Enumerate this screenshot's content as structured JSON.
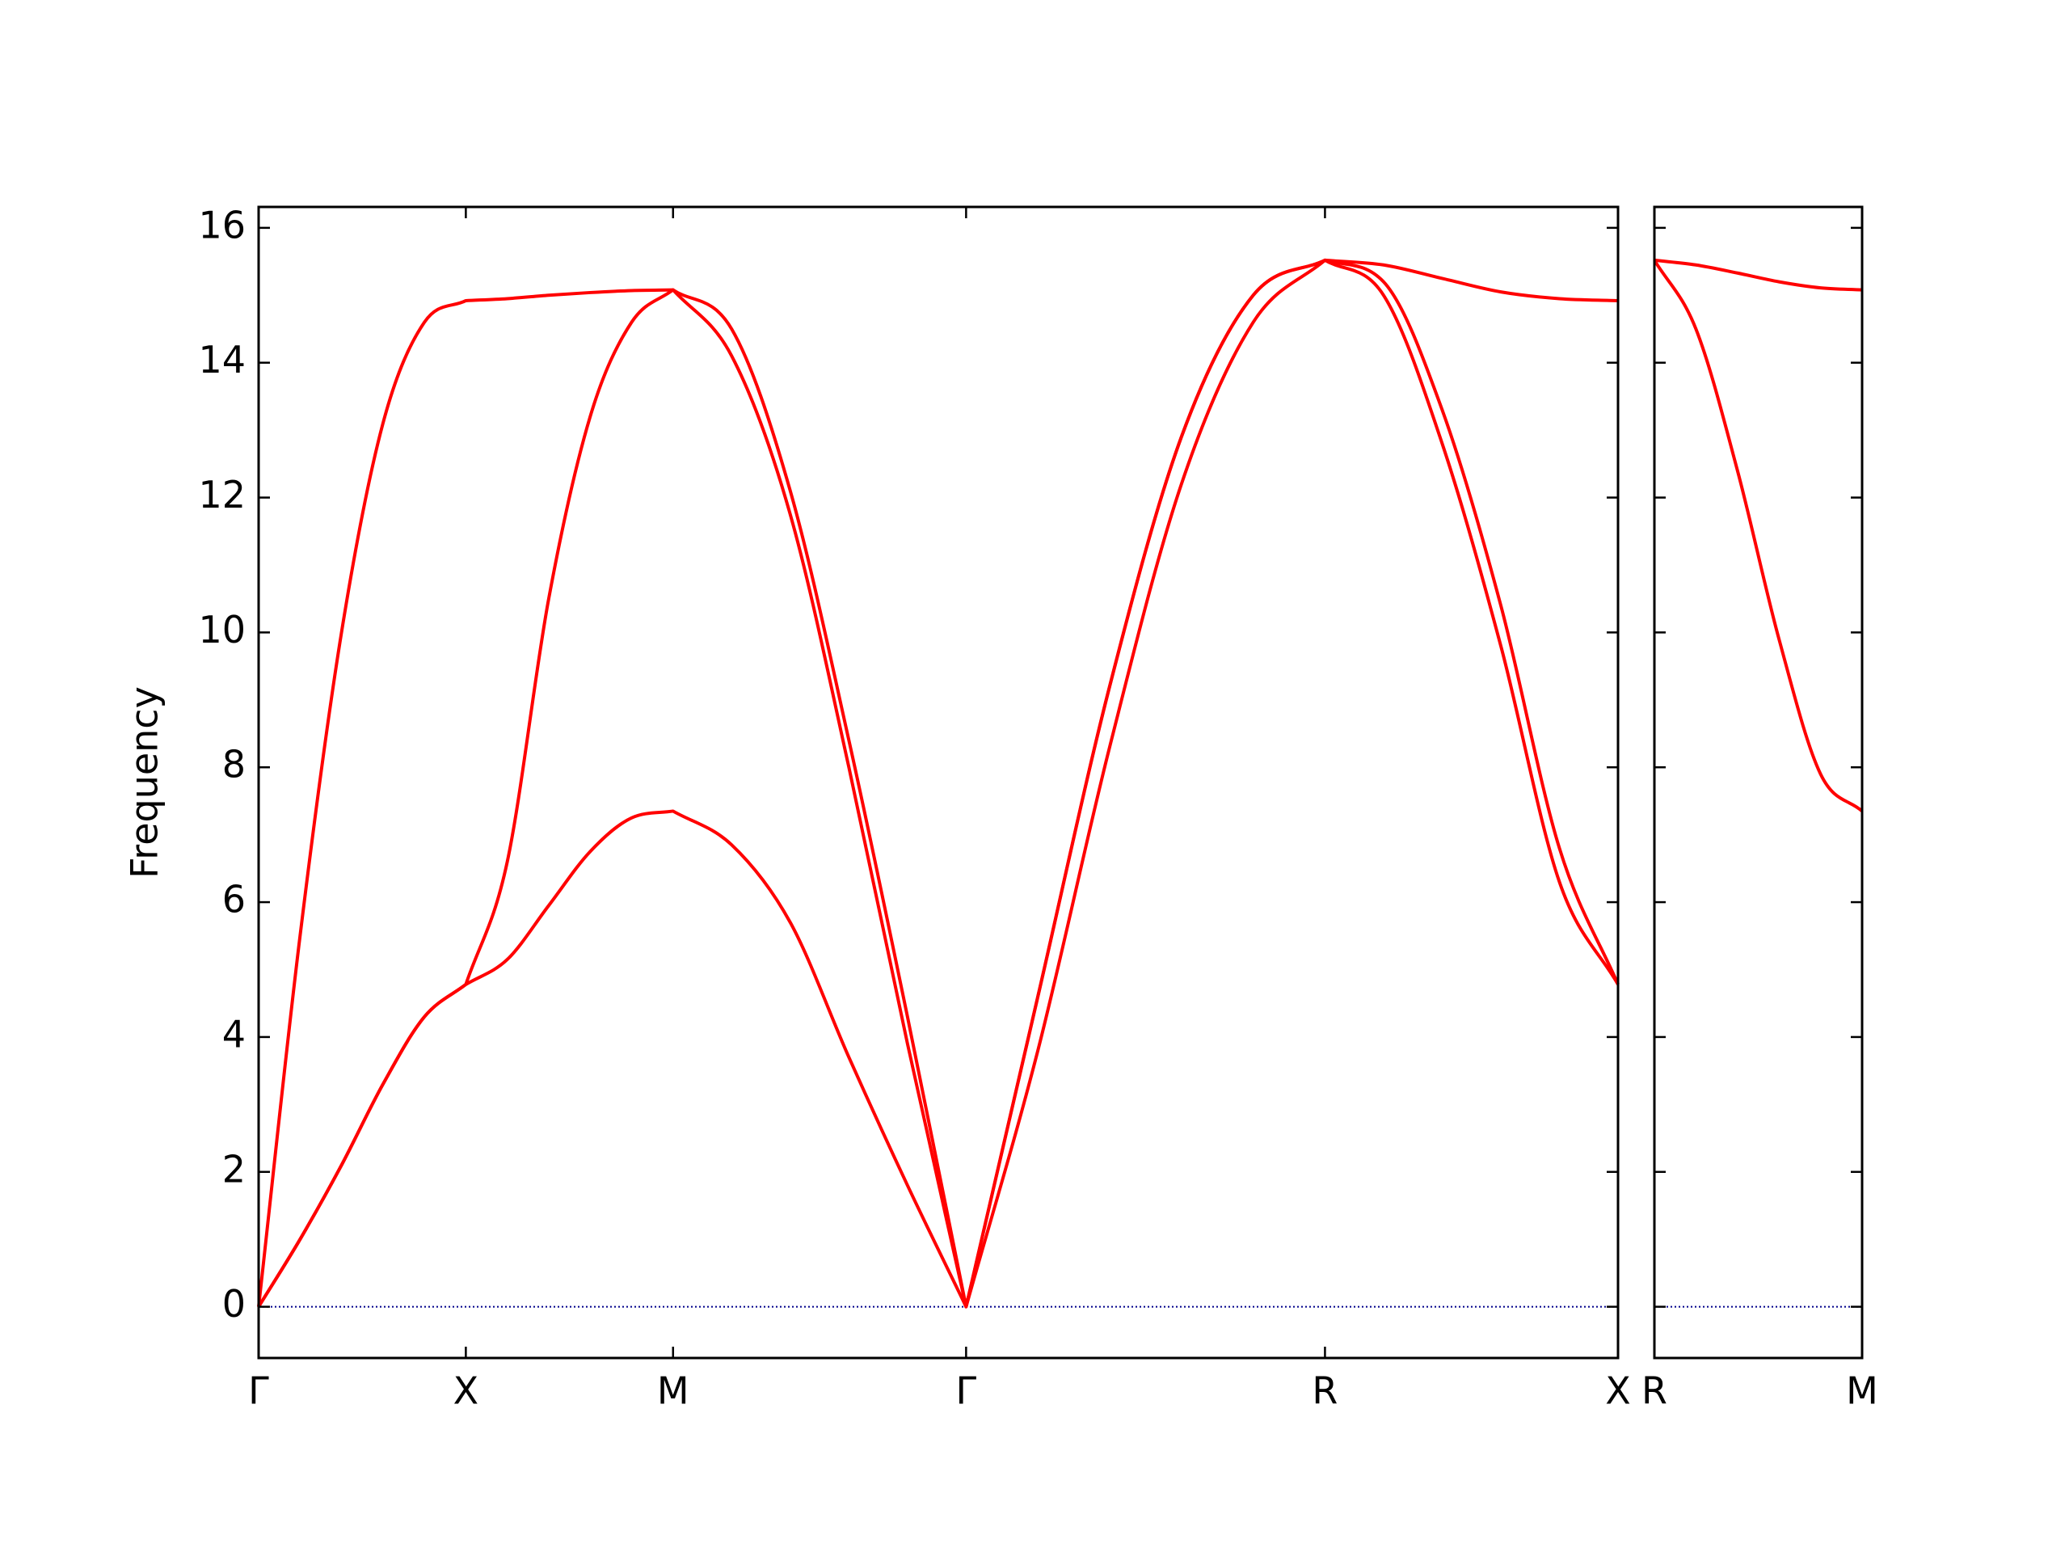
{
  "chart_data": [
    {
      "type": "line",
      "ylabel": "Frequency",
      "x": [
        0,
        0.1,
        0.2,
        0.3,
        0.4,
        0.5,
        0.6,
        0.7,
        0.8,
        0.9,
        1.0,
        1.1414,
        1.2828,
        1.4243,
        1.5657,
        1.7071,
        1.8803,
        2.0535,
        2.2267,
        2.3999,
        2.5731,
        2.7145,
        2.8559,
        2.9974,
        3.1388,
        3.2802
      ],
      "series": [
        {
          "color": "#ff0000",
          "values": [
            0,
            1.0,
            2.1,
            3.3,
            4.3,
            4.78,
            5.15,
            5.95,
            6.75,
            7.25,
            7.35,
            6.85,
            5.7,
            3.7,
            1.8,
            0,
            3.8,
            8.3,
            12.2,
            14.6,
            15.52,
            15.0,
            12.8,
            9.8,
            6.3,
            4.78
          ]
        },
        {
          "color": "#ff0000",
          "values": [
            0,
            1.0,
            2.1,
            3.3,
            4.3,
            4.78,
            6.6,
            10.5,
            13.2,
            14.6,
            15.08,
            14.1,
            11.75,
            8.0,
            3.9,
            0,
            4.6,
            9.2,
            12.9,
            15.0,
            15.52,
            15.2,
            13.3,
            10.4,
            6.8,
            4.78
          ]
        },
        {
          "color": "#ff0000",
          "values": [
            0,
            5.5,
            10.0,
            13.1,
            14.6,
            14.92,
            14.95,
            15.0,
            15.04,
            15.07,
            15.08,
            14.5,
            12.1,
            8.4,
            4.3,
            0,
            4.6,
            9.2,
            12.9,
            15.0,
            15.52,
            15.45,
            15.25,
            15.05,
            14.95,
            14.92
          ]
        }
      ],
      "xlim": [
        0,
        3.2802
      ],
      "xticks": [
        {
          "value": 0,
          "label": "Γ"
        },
        {
          "value": 0.5,
          "label": "X"
        },
        {
          "value": 1.0,
          "label": "M"
        },
        {
          "value": 1.7071,
          "label": "Γ"
        },
        {
          "value": 2.5731,
          "label": "R"
        },
        {
          "value": 3.2802,
          "label": "X"
        }
      ],
      "ylim": [
        -0.76,
        16.31
      ],
      "yticks": [
        0,
        2,
        4,
        6,
        8,
        10,
        12,
        14,
        16
      ],
      "show_ytick_labels": true,
      "hline": {
        "y": 0,
        "color": "#00008b",
        "linestyle": "dotted"
      }
    },
    {
      "type": "line",
      "x": [
        0,
        0.1,
        0.2,
        0.3,
        0.4,
        0.5
      ],
      "series": [
        {
          "color": "#ff0000",
          "values": [
            15.52,
            15.45,
            15.33,
            15.2,
            15.11,
            15.08
          ]
        },
        {
          "color": "#ff0000",
          "values": [
            15.52,
            14.5,
            12.4,
            9.9,
            7.9,
            7.35
          ]
        }
      ],
      "xlim": [
        0,
        0.5
      ],
      "xticks": [
        {
          "value": 0,
          "label": "R"
        },
        {
          "value": 0.5,
          "label": "M"
        }
      ],
      "ylim": [
        -0.76,
        16.31
      ],
      "yticks": [
        0,
        2,
        4,
        6,
        8,
        10,
        12,
        14,
        16
      ],
      "show_ytick_labels": false,
      "hline": {
        "y": 0,
        "color": "#00008b",
        "linestyle": "dotted"
      }
    }
  ]
}
